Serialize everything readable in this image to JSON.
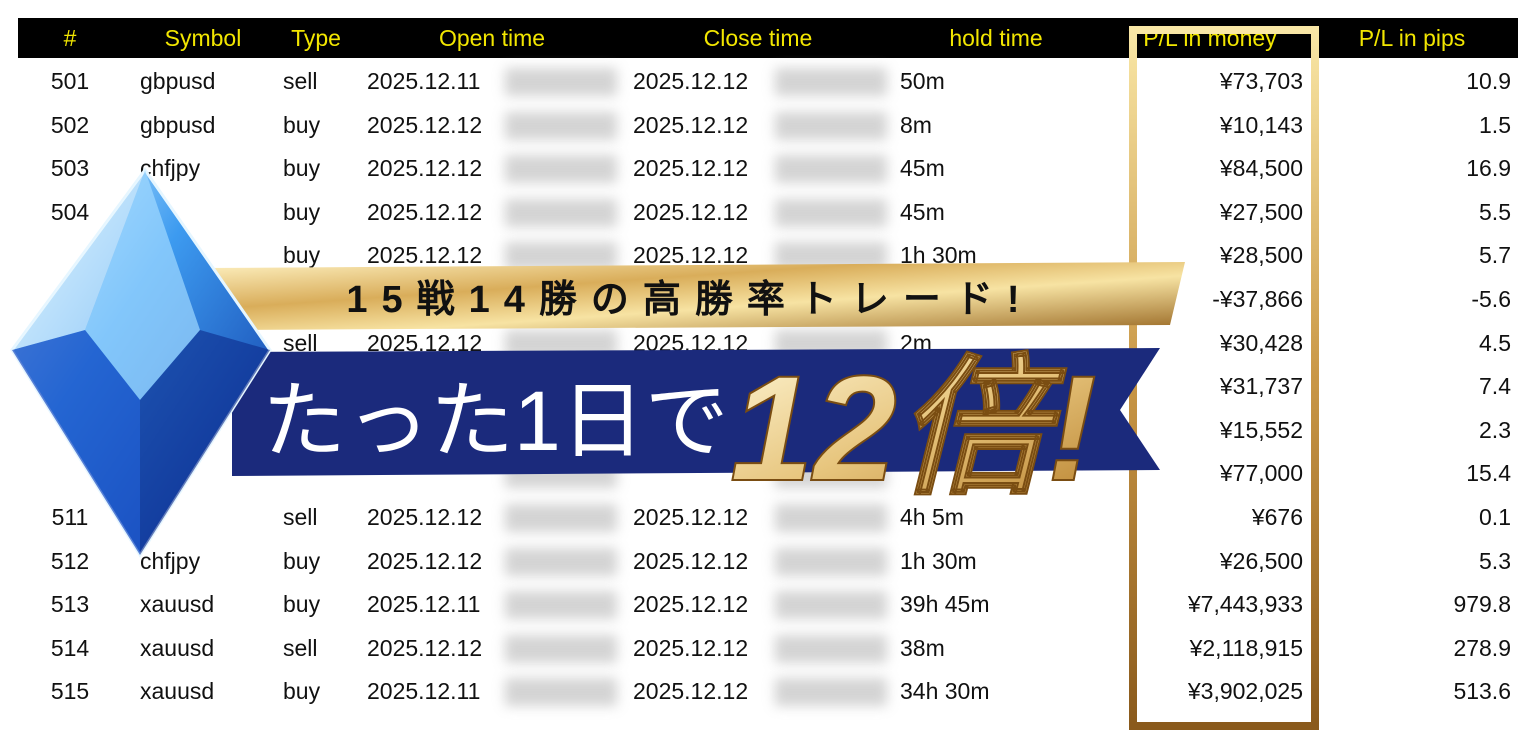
{
  "table": {
    "headers": [
      "#",
      "Symbol",
      "Type",
      "Open time",
      "Close time",
      "hold time",
      "P/L in money",
      "P/L in pips"
    ],
    "rows": [
      [
        "501",
        "gbpusd",
        "sell",
        "2025.12.11",
        "2025.12.12",
        "50m",
        "¥73,703",
        "10.9"
      ],
      [
        "502",
        "gbpusd",
        "buy",
        "2025.12.12",
        "2025.12.12",
        "8m",
        "¥10,143",
        "1.5"
      ],
      [
        "503",
        "chfjpy",
        "buy",
        "2025.12.12",
        "2025.12.12",
        "45m",
        "¥84,500",
        "16.9"
      ],
      [
        "504",
        null,
        "buy",
        "2025.12.12",
        "2025.12.12",
        "45m",
        "¥27,500",
        "5.5"
      ],
      [
        null,
        null,
        "buy",
        "2025.12.12",
        "2025.12.12",
        "1h 30m",
        "¥28,500",
        "5.7"
      ],
      [
        null,
        null,
        null,
        null,
        null,
        null,
        "-¥37,866",
        "-5.6"
      ],
      [
        null,
        null,
        "sell",
        "2025.12.12",
        "2025.12.12",
        "2m",
        "¥30,428",
        "4.5"
      ],
      [
        null,
        null,
        null,
        null,
        null,
        null,
        "¥31,737",
        "7.4"
      ],
      [
        null,
        null,
        null,
        null,
        null,
        null,
        "¥15,552",
        "2.3"
      ],
      [
        null,
        null,
        null,
        null,
        null,
        null,
        "¥77,000",
        "15.4"
      ],
      [
        "511",
        null,
        "sell",
        "2025.12.12",
        "2025.12.12",
        "4h 5m",
        "¥676",
        "0.1"
      ],
      [
        "512",
        "chfjpy",
        "buy",
        "2025.12.12",
        "2025.12.12",
        "1h 30m",
        "¥26,500",
        "5.3"
      ],
      [
        "513",
        "xauusd",
        "buy",
        "2025.12.11",
        "2025.12.12",
        "39h 45m",
        "¥7,443,933",
        "979.8"
      ],
      [
        "514",
        "xauusd",
        "sell",
        "2025.12.12",
        "2025.12.12",
        "38m",
        "¥2,118,915",
        "278.9"
      ],
      [
        "515",
        "xauusd",
        "buy",
        "2025.12.11",
        "2025.12.12",
        "34h 30m",
        "¥3,902,025",
        "513.6"
      ]
    ]
  },
  "banner": {
    "headline": "15戦14勝の高勝率トレード!",
    "lead": "たった1日で",
    "highlight": "12倍!"
  }
}
